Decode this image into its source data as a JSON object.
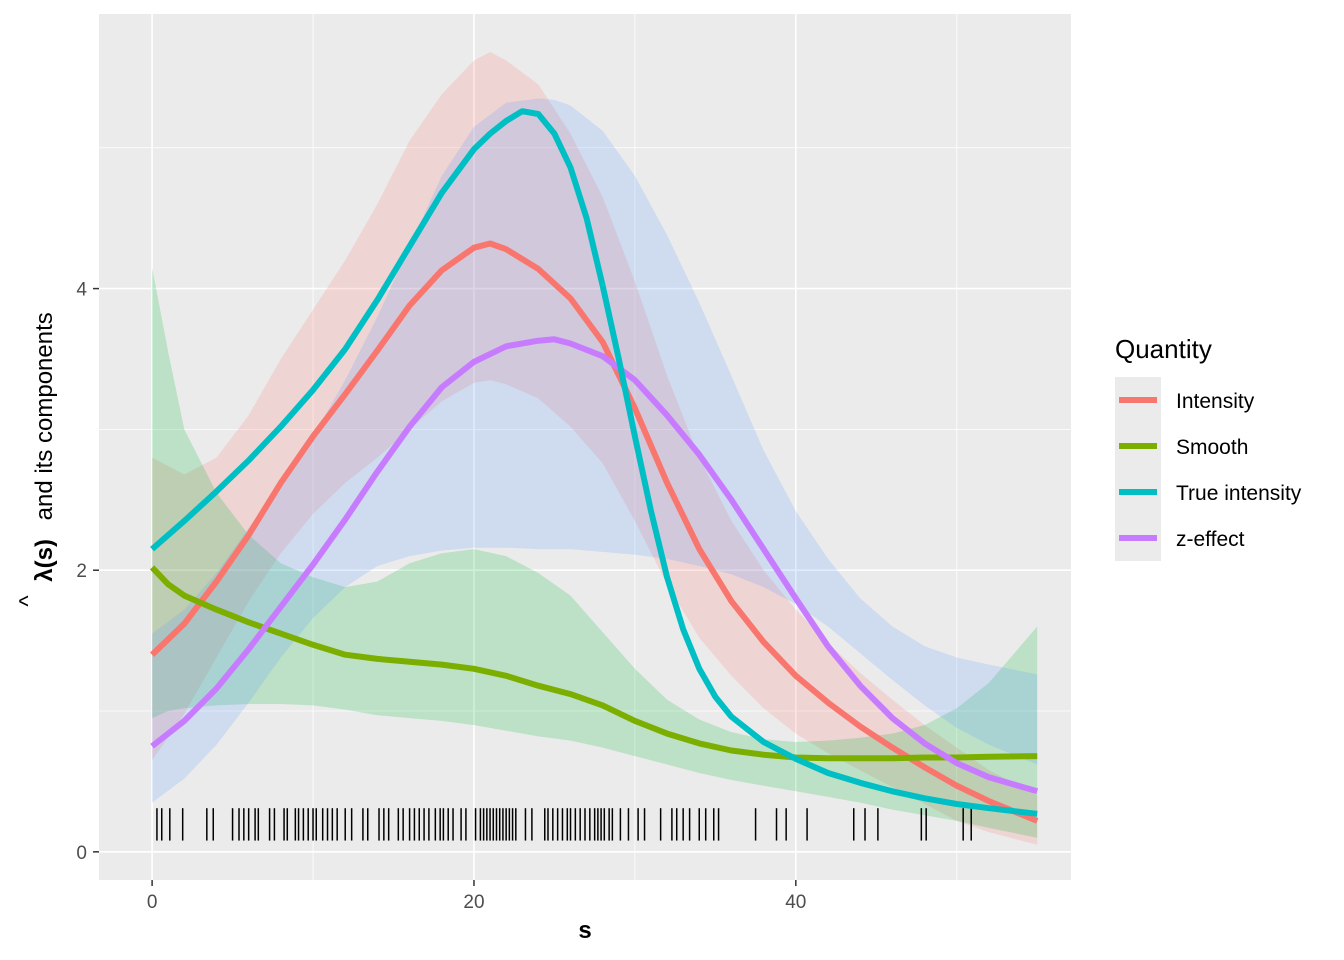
{
  "chart_data": {
    "type": "line",
    "xlabel": "s",
    "ylabel_parts": [
      "λ(s)",
      "and its components"
    ],
    "ylabel_hat": "^",
    "xlim": [
      -3.3,
      57.1
    ],
    "ylim": [
      -0.2,
      5.95
    ],
    "x_ticks": [
      0,
      20,
      40
    ],
    "y_ticks": [
      0,
      2,
      4
    ],
    "x_tick_labels": [
      "0",
      "20",
      "40"
    ],
    "y_tick_labels": [
      "0",
      "2",
      "4"
    ],
    "grid": true,
    "legend": {
      "title": "Quantity",
      "position": "right"
    },
    "series": [
      {
        "name": "Intensity",
        "color": "#F8766D",
        "x": [
          0,
          2,
          4,
          6,
          8,
          10,
          12,
          14,
          16,
          18,
          20,
          21,
          22,
          24,
          26,
          28,
          30,
          32,
          34,
          36,
          38,
          40,
          42,
          44,
          46,
          48,
          50,
          52,
          55
        ],
        "y": [
          1.4,
          1.62,
          1.92,
          2.25,
          2.62,
          2.95,
          3.25,
          3.56,
          3.88,
          4.13,
          4.29,
          4.32,
          4.28,
          4.14,
          3.93,
          3.62,
          3.15,
          2.62,
          2.15,
          1.78,
          1.49,
          1.25,
          1.06,
          0.89,
          0.74,
          0.6,
          0.47,
          0.36,
          0.22
        ],
        "lower": [
          0.65,
          0.98,
          1.38,
          1.78,
          2.12,
          2.4,
          2.62,
          2.8,
          3.0,
          3.2,
          3.33,
          3.35,
          3.32,
          3.22,
          3.02,
          2.76,
          2.35,
          1.9,
          1.52,
          1.25,
          1.02,
          0.84,
          0.7,
          0.58,
          0.46,
          0.34,
          0.22,
          0.14,
          0.05
        ],
        "upper": [
          2.8,
          2.68,
          2.8,
          3.1,
          3.5,
          3.85,
          4.2,
          4.6,
          5.05,
          5.38,
          5.62,
          5.68,
          5.62,
          5.45,
          5.1,
          4.65,
          4.05,
          3.38,
          2.8,
          2.35,
          2.0,
          1.72,
          1.48,
          1.27,
          1.08,
          0.9,
          0.74,
          0.58,
          0.4
        ]
      },
      {
        "name": "Smooth",
        "color": "#7CAE00",
        "x": [
          0,
          1,
          2,
          4,
          6,
          8,
          10,
          12,
          14,
          16,
          18,
          20,
          22,
          24,
          26,
          28,
          30,
          32,
          34,
          36,
          38,
          40,
          42,
          44,
          46,
          48,
          50,
          52,
          55
        ],
        "y": [
          2.02,
          1.9,
          1.82,
          1.72,
          1.63,
          1.55,
          1.47,
          1.4,
          1.37,
          1.35,
          1.33,
          1.3,
          1.25,
          1.18,
          1.12,
          1.04,
          0.93,
          0.84,
          0.77,
          0.72,
          0.69,
          0.67,
          0.665,
          0.665,
          0.665,
          0.67,
          0.67,
          0.675,
          0.68
        ],
        "lower": [
          0.95,
          1.0,
          1.02,
          1.04,
          1.05,
          1.05,
          1.04,
          1.01,
          0.97,
          0.95,
          0.93,
          0.9,
          0.86,
          0.82,
          0.79,
          0.74,
          0.68,
          0.62,
          0.56,
          0.51,
          0.47,
          0.43,
          0.39,
          0.35,
          0.3,
          0.26,
          0.22,
          0.17,
          0.1
        ],
        "upper": [
          4.15,
          3.55,
          3.0,
          2.55,
          2.25,
          2.05,
          1.95,
          1.88,
          1.92,
          2.05,
          2.12,
          2.15,
          2.1,
          1.98,
          1.82,
          1.56,
          1.3,
          1.08,
          0.94,
          0.85,
          0.8,
          0.78,
          0.79,
          0.81,
          0.84,
          0.9,
          1.02,
          1.2,
          1.6
        ]
      },
      {
        "name": "True intensity",
        "color": "#00BFC4",
        "x": [
          0,
          2,
          4,
          6,
          8,
          10,
          12,
          14,
          16,
          18,
          20,
          21,
          22,
          23,
          24,
          25,
          26,
          27,
          28,
          29,
          30,
          31,
          32,
          33,
          34,
          35,
          36,
          38,
          40,
          42,
          44,
          46,
          48,
          50,
          52,
          55
        ],
        "y": [
          2.15,
          2.35,
          2.56,
          2.78,
          3.02,
          3.28,
          3.57,
          3.92,
          4.3,
          4.68,
          4.99,
          5.1,
          5.19,
          5.26,
          5.24,
          5.1,
          4.86,
          4.5,
          4.02,
          3.5,
          2.95,
          2.42,
          1.95,
          1.58,
          1.3,
          1.1,
          0.96,
          0.78,
          0.66,
          0.56,
          0.49,
          0.43,
          0.38,
          0.34,
          0.31,
          0.27
        ]
      },
      {
        "name": "z-effect",
        "color": "#C77CFF",
        "x": [
          0,
          2,
          4,
          6,
          8,
          10,
          12,
          14,
          16,
          18,
          20,
          22,
          24,
          25,
          26,
          28,
          30,
          32,
          34,
          36,
          38,
          40,
          42,
          44,
          46,
          48,
          50,
          52,
          55
        ],
        "y": [
          0.75,
          0.93,
          1.16,
          1.44,
          1.74,
          2.04,
          2.36,
          2.7,
          3.02,
          3.3,
          3.48,
          3.59,
          3.63,
          3.64,
          3.61,
          3.52,
          3.35,
          3.1,
          2.82,
          2.5,
          2.15,
          1.8,
          1.46,
          1.18,
          0.95,
          0.77,
          0.63,
          0.53,
          0.43
        ],
        "lower": [
          0.35,
          0.52,
          0.76,
          1.06,
          1.38,
          1.66,
          1.88,
          2.03,
          2.1,
          2.14,
          2.16,
          2.16,
          2.15,
          2.15,
          2.15,
          2.13,
          2.11,
          2.08,
          2.03,
          1.97,
          1.88,
          1.76,
          1.6,
          1.41,
          1.22,
          1.04,
          0.88,
          0.76,
          0.62
        ],
        "upper": [
          1.55,
          1.72,
          1.98,
          2.3,
          2.62,
          2.95,
          3.35,
          3.8,
          4.3,
          4.8,
          5.15,
          5.32,
          5.35,
          5.34,
          5.3,
          5.12,
          4.8,
          4.38,
          3.9,
          3.38,
          2.85,
          2.42,
          2.08,
          1.8,
          1.6,
          1.46,
          1.38,
          1.33,
          1.26
        ]
      }
    ],
    "rug": [
      0.3,
      0.6,
      1.1,
      1.9,
      3.4,
      3.8,
      5.0,
      5.4,
      5.7,
      6.0,
      6.4,
      6.6,
      7.3,
      7.6,
      8.2,
      8.4,
      8.9,
      9.1,
      9.4,
      9.7,
      10.0,
      10.2,
      10.6,
      10.9,
      11.2,
      11.5,
      12.0,
      12.4,
      13.1,
      13.4,
      14.1,
      14.4,
      14.7,
      15.3,
      15.6,
      16.0,
      16.3,
      16.6,
      16.9,
      17.2,
      17.6,
      17.9,
      18.1,
      18.4,
      18.7,
      19.2,
      19.5,
      20.1,
      20.4,
      20.6,
      20.8,
      21.0,
      21.2,
      21.4,
      21.6,
      21.8,
      22.0,
      22.2,
      22.4,
      22.6,
      23.2,
      23.6,
      24.4,
      24.6,
      24.9,
      25.2,
      25.5,
      25.8,
      26.0,
      26.3,
      26.6,
      26.9,
      27.2,
      27.5,
      27.7,
      27.9,
      28.1,
      28.4,
      28.6,
      29.1,
      29.6,
      30.2,
      30.6,
      31.6,
      32.3,
      32.6,
      33.0,
      33.4,
      34.0,
      34.4,
      34.9,
      35.2,
      37.5,
      38.8,
      39.4,
      40.7,
      43.6,
      44.3,
      45.1,
      47.8,
      48.1,
      50.4,
      50.9
    ]
  }
}
